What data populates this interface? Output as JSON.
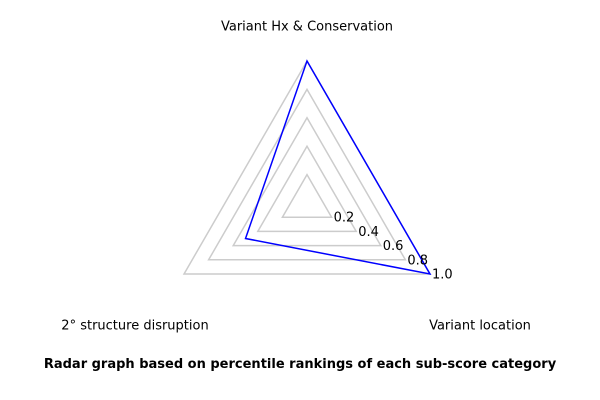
{
  "chart_data": {
    "type": "radar",
    "axes": [
      "Variant Hx & Conservation",
      "Variant location",
      "2° structure disruption"
    ],
    "values": [
      1.0,
      1.0,
      0.5
    ],
    "rlim": [
      0,
      1.0
    ],
    "rticks": [
      0.2,
      0.4,
      0.6,
      0.8,
      1.0
    ],
    "rtick_labels": [
      "0.2",
      "0.4",
      "0.6",
      "0.8",
      "1.0"
    ],
    "caption": "Radar graph based on percentile rankings of each sub-score category",
    "colors": {
      "series": "#0000ff",
      "grid": "#cccccc"
    }
  }
}
